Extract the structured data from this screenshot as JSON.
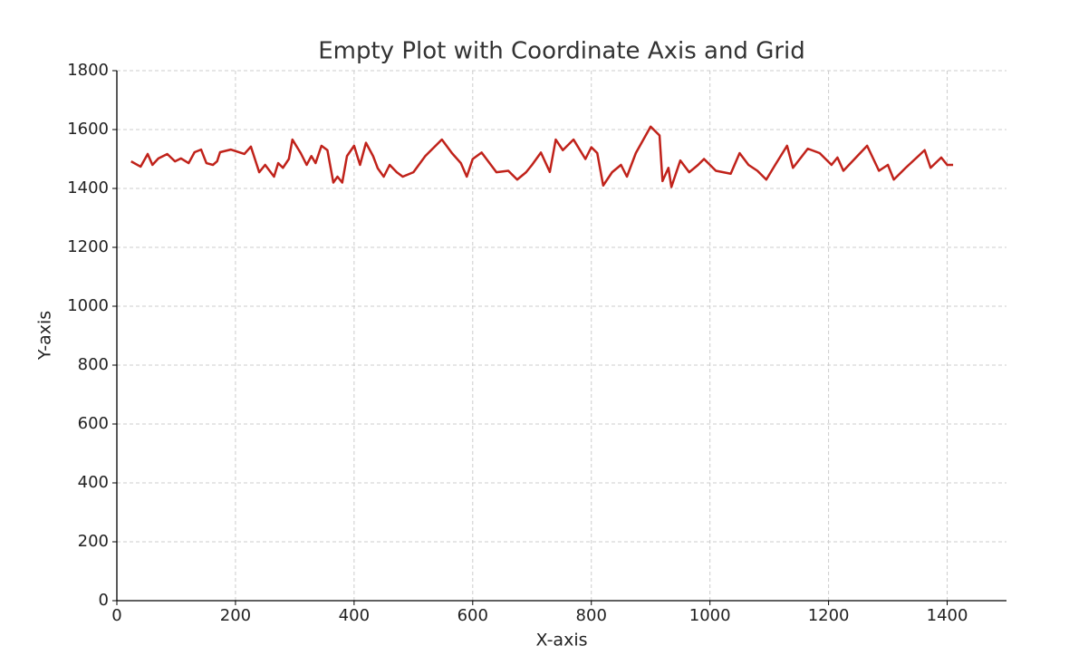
{
  "chart_data": {
    "type": "line",
    "title": "Empty Plot with Coordinate Axis and Grid",
    "x_label": "X-axis",
    "y_label": "Y-axis",
    "x": [
      24,
      40,
      52,
      60,
      70,
      85,
      98,
      108,
      121,
      131,
      142,
      151,
      162,
      169,
      174,
      192,
      215,
      226,
      240,
      250,
      265,
      272,
      280,
      290,
      296,
      310,
      320,
      328,
      335,
      345,
      355,
      365,
      372,
      380,
      388,
      400,
      410,
      420,
      432,
      440,
      450,
      460,
      472,
      482,
      500,
      520,
      548,
      565,
      580,
      590,
      600,
      615,
      640,
      660,
      675,
      690,
      700,
      715,
      730,
      740,
      752,
      770,
      790,
      800,
      810,
      820,
      835,
      850,
      860,
      875,
      900,
      915,
      920,
      930,
      935,
      950,
      965,
      980,
      990,
      1010,
      1035,
      1050,
      1065,
      1080,
      1095,
      1110,
      1130,
      1140,
      1165,
      1185,
      1205,
      1215,
      1225,
      1265,
      1285,
      1300,
      1310,
      1330,
      1362,
      1372,
      1390,
      1400,
      1410
    ],
    "series": [
      {
        "name": "line",
        "color": "#c0221a",
        "values": [
          1492,
          1474,
          1517,
          1480,
          1502,
          1517,
          1492,
          1502,
          1486,
          1523,
          1532,
          1486,
          1480,
          1492,
          1523,
          1532,
          1517,
          1542,
          1455,
          1480,
          1440,
          1486,
          1470,
          1500,
          1566,
          1520,
          1480,
          1510,
          1486,
          1545,
          1530,
          1420,
          1440,
          1420,
          1510,
          1545,
          1480,
          1555,
          1510,
          1468,
          1440,
          1480,
          1455,
          1440,
          1455,
          1510,
          1566,
          1520,
          1486,
          1440,
          1500,
          1522,
          1455,
          1460,
          1430,
          1455,
          1480,
          1522,
          1456,
          1566,
          1530,
          1566,
          1500,
          1540,
          1520,
          1410,
          1455,
          1480,
          1440,
          1520,
          1610,
          1580,
          1425,
          1470,
          1405,
          1495,
          1455,
          1480,
          1500,
          1460,
          1450,
          1520,
          1480,
          1460,
          1430,
          1480,
          1545,
          1470,
          1535,
          1520,
          1480,
          1505,
          1460,
          1545,
          1460,
          1480,
          1430,
          1470,
          1530,
          1470,
          1505,
          1480,
          1480
        ]
      }
    ],
    "xlim": [
      0,
      1500
    ],
    "ylim": [
      0,
      1800
    ],
    "xticks": [
      0,
      200,
      400,
      600,
      800,
      1000,
      1200,
      1400
    ],
    "yticks": [
      0,
      200,
      400,
      600,
      800,
      1000,
      1200,
      1400,
      1600,
      1800
    ],
    "grid": true
  }
}
